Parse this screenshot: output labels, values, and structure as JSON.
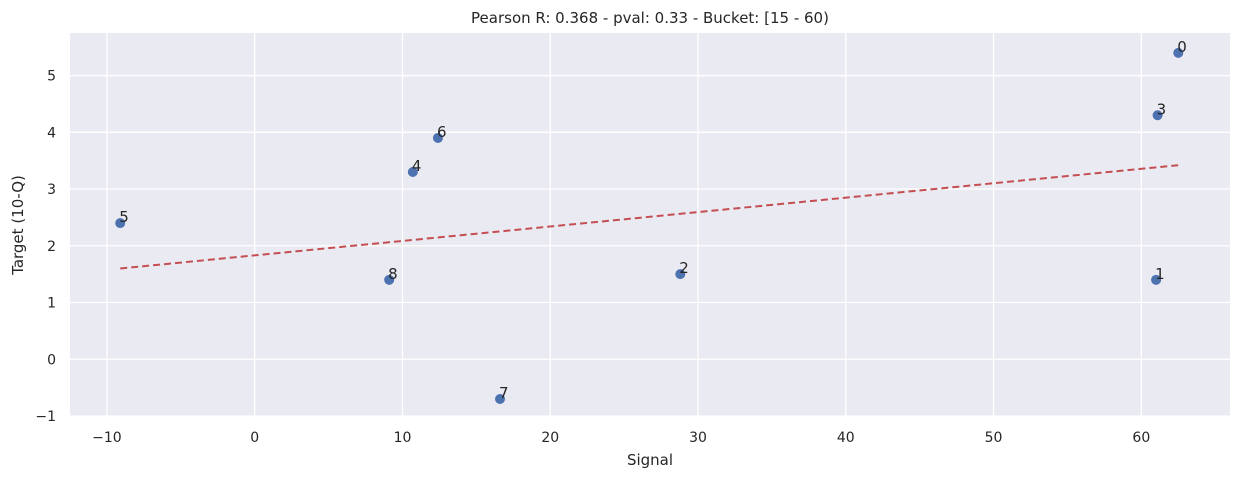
{
  "chart_data": {
    "type": "scatter",
    "title": "Pearson R: 0.368 - pval: 0.33 - Bucket: [15 - 60)",
    "xlabel": "Signal",
    "ylabel": "Target (10-Q)",
    "xlim": [
      -12.5,
      66
    ],
    "ylim": [
      -1,
      5.75
    ],
    "xticks": [
      -10,
      0,
      10,
      20,
      30,
      40,
      50,
      60
    ],
    "xtick_labels": [
      "−10",
      "0",
      "10",
      "20",
      "30",
      "40",
      "50",
      "60"
    ],
    "yticks": [
      -1,
      0,
      1,
      2,
      3,
      4,
      5
    ],
    "ytick_labels": [
      "−1",
      "0",
      "1",
      "2",
      "3",
      "4",
      "5"
    ],
    "grid": true,
    "legend": null,
    "points": [
      {
        "label": "0",
        "x": 62.5,
        "y": 5.4
      },
      {
        "label": "1",
        "x": 61.0,
        "y": 1.4
      },
      {
        "label": "2",
        "x": 28.8,
        "y": 1.5
      },
      {
        "label": "3",
        "x": 61.1,
        "y": 4.3
      },
      {
        "label": "4",
        "x": 10.7,
        "y": 3.3
      },
      {
        "label": "5",
        "x": -9.1,
        "y": 2.4
      },
      {
        "label": "6",
        "x": 12.4,
        "y": 3.9
      },
      {
        "label": "7",
        "x": 16.6,
        "y": -0.7
      },
      {
        "label": "8",
        "x": 9.1,
        "y": 1.4
      }
    ],
    "fit_line": {
      "style": "dashed",
      "x": [
        -9.1,
        62.5
      ],
      "y": [
        1.6,
        3.42
      ]
    },
    "colors": {
      "background": "#eaeaf2",
      "grid": "#ffffff",
      "points": "#4c72b0",
      "fit_line": "#c44e52",
      "text": "#262626"
    }
  }
}
